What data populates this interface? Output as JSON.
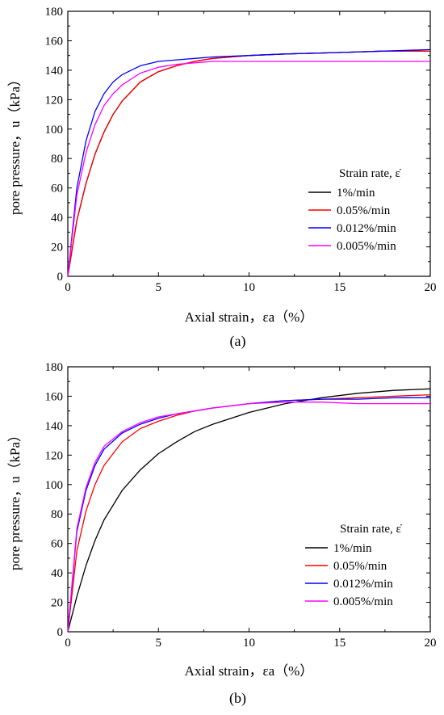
{
  "chart_data": [
    {
      "type": "line",
      "panel_label": "(a)",
      "xlabel": "Axial strain，εa（%）",
      "ylabel": "pore pressure，u（kPa）",
      "xlim": [
        0,
        20
      ],
      "ylim": [
        0,
        180
      ],
      "xticks": [
        0,
        5,
        10,
        15,
        20
      ],
      "yticks": [
        0,
        20,
        40,
        60,
        80,
        100,
        120,
        140,
        160,
        180
      ],
      "legend_title": "Strain rate, ε̇",
      "legend_position": "center-right",
      "series": [
        {
          "name": "1%/min",
          "color": "#000000",
          "x": [
            0,
            0.5,
            1,
            1.5,
            2,
            2.5,
            3,
            4,
            5,
            6,
            7,
            8,
            10,
            12,
            15,
            17.5,
            20
          ],
          "y": [
            0,
            38,
            63,
            83,
            98,
            110,
            119,
            132,
            139,
            143,
            146,
            148,
            150,
            151,
            152,
            153,
            153
          ]
        },
        {
          "name": "0.05%/min",
          "color": "#ff0000",
          "x": [
            0,
            0.5,
            1,
            1.5,
            2,
            2.5,
            3,
            4,
            5,
            6,
            7,
            8,
            10,
            12,
            15,
            17.5,
            20
          ],
          "y": [
            0,
            38,
            63,
            83,
            98,
            110,
            119,
            132,
            139,
            143,
            146,
            148,
            150,
            151,
            152,
            153,
            153
          ]
        },
        {
          "name": "0.012%/min",
          "color": "#0000ff",
          "x": [
            0,
            0.5,
            1,
            1.5,
            2,
            2.5,
            3,
            4,
            5,
            6,
            7,
            8,
            10,
            12,
            15,
            17.5,
            20
          ],
          "y": [
            0,
            60,
            92,
            112,
            124,
            132,
            137,
            143,
            146,
            147,
            148,
            149,
            150,
            151,
            152,
            153,
            154
          ]
        },
        {
          "name": "0.005%/min",
          "color": "#ff00ff",
          "x": [
            0,
            0.5,
            1,
            1.5,
            2,
            2.5,
            3,
            4,
            5,
            6,
            7,
            8,
            10,
            12,
            15,
            17.5,
            20
          ],
          "y": [
            0,
            55,
            84,
            103,
            116,
            124,
            130,
            138,
            142,
            144,
            145,
            146,
            146,
            146,
            146,
            146,
            146
          ]
        }
      ]
    },
    {
      "type": "line",
      "panel_label": "(b)",
      "xlabel": "Axial strain，εa（%）",
      "ylabel": "pore pressure，u（kPa）",
      "xlim": [
        0,
        20
      ],
      "ylim": [
        0,
        180
      ],
      "xticks": [
        0,
        5,
        10,
        15,
        20
      ],
      "yticks": [
        0,
        20,
        40,
        60,
        80,
        100,
        120,
        140,
        160,
        180
      ],
      "legend_title": "Strain rate, ε̇",
      "legend_position": "lower-right",
      "series": [
        {
          "name": "1%/min",
          "color": "#000000",
          "x": [
            0,
            0.5,
            1,
            1.5,
            2,
            3,
            4,
            5,
            6,
            7,
            8,
            10,
            12,
            14,
            16,
            18,
            20
          ],
          "y": [
            0,
            24,
            45,
            62,
            76,
            96,
            110,
            121,
            129,
            136,
            141,
            149,
            155,
            159,
            162,
            164,
            165
          ]
        },
        {
          "name": "0.05%/min",
          "color": "#ff0000",
          "x": [
            0,
            0.5,
            1,
            1.5,
            2,
            3,
            4,
            5,
            6,
            7,
            8,
            10,
            12,
            14,
            16,
            18,
            20
          ],
          "y": [
            0,
            55,
            82,
            100,
            113,
            129,
            138,
            143,
            147,
            150,
            152,
            155,
            157,
            158,
            159,
            160,
            161
          ]
        },
        {
          "name": "0.012%/min",
          "color": "#0000ff",
          "x": [
            0,
            0.5,
            1,
            1.5,
            2,
            3,
            4,
            5,
            6,
            7,
            8,
            10,
            12,
            14,
            16,
            18,
            20
          ],
          "y": [
            0,
            68,
            96,
            113,
            124,
            135,
            141,
            145,
            148,
            150,
            152,
            155,
            157,
            158,
            158,
            159,
            159
          ]
        },
        {
          "name": "0.005%/min",
          "color": "#ff00ff",
          "x": [
            0,
            0.5,
            1,
            1.5,
            2,
            3,
            4,
            5,
            6,
            7,
            8,
            10,
            12,
            14,
            16,
            18,
            20
          ],
          "y": [
            0,
            70,
            98,
            115,
            126,
            136,
            142,
            146,
            148,
            150,
            152,
            155,
            156,
            156,
            155,
            155,
            155
          ]
        }
      ]
    }
  ]
}
